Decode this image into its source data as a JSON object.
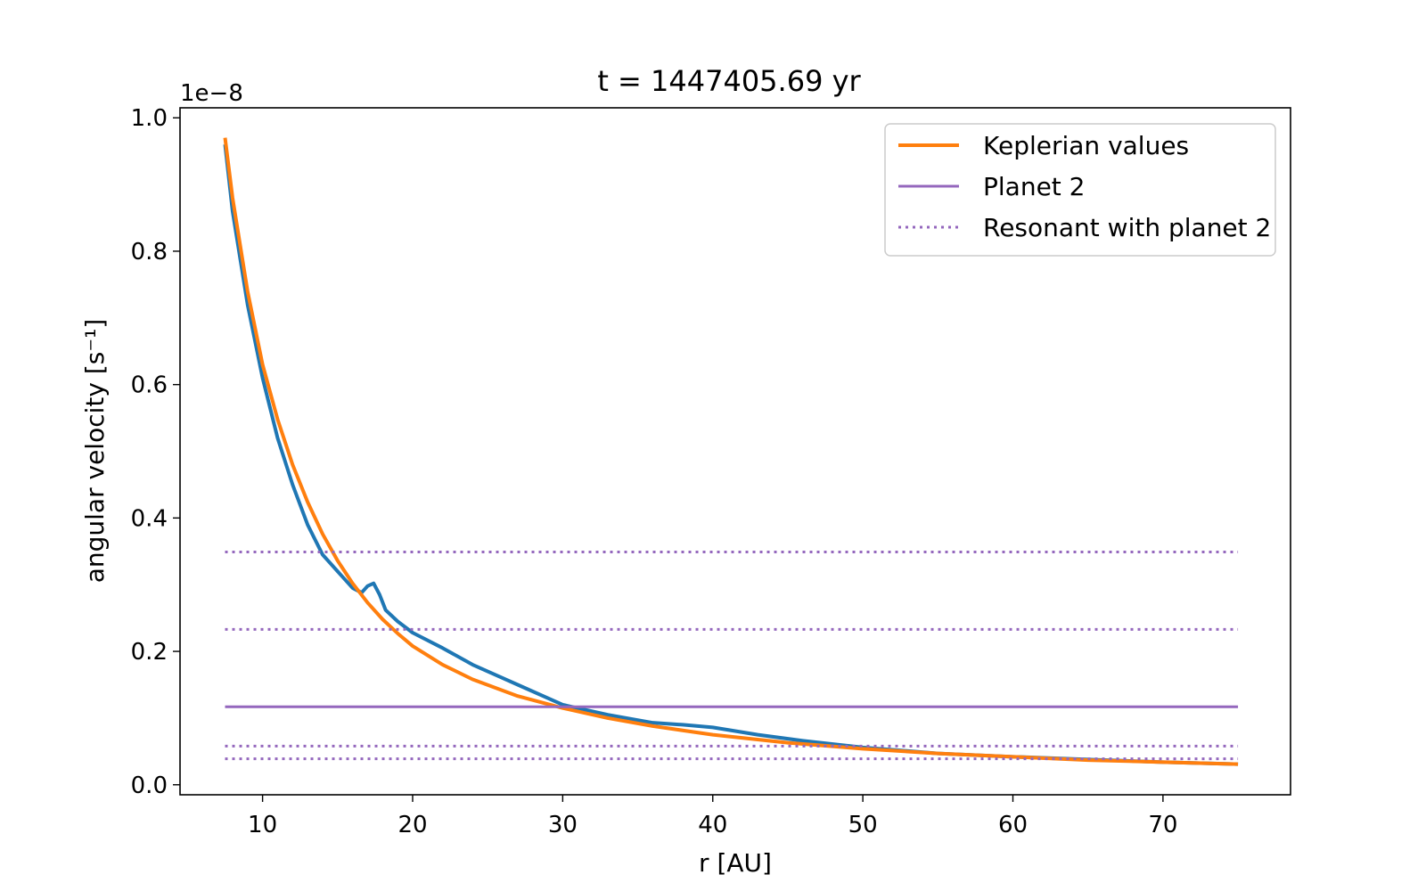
{
  "chart_data": {
    "type": "line",
    "title": "t = 1447405.69 yr",
    "xlabel": "r [AU]",
    "ylabel": "angular velocity [s⁻¹]",
    "y_offset_label": "1e−8",
    "xlim": [
      4.5,
      78.5
    ],
    "ylim": [
      -0.015,
      1.015
    ],
    "x_ticks": [
      10,
      20,
      30,
      40,
      50,
      60,
      70
    ],
    "y_ticks": [
      0.0,
      0.2,
      0.4,
      0.6,
      0.8,
      1.0
    ],
    "y_tick_labels": [
      "0.0",
      "0.2",
      "0.4",
      "0.6",
      "0.8",
      "1.0"
    ],
    "grid": false,
    "legend_position": "upper right",
    "colors": {
      "simulation": "#1f77b4",
      "keplerian": "#ff7f0e",
      "planet": "#9467bd"
    },
    "series": [
      {
        "name": "",
        "style": "solid",
        "color": "#1f77b4",
        "x": [
          7.5,
          8,
          9,
          10,
          11,
          12,
          13,
          14,
          15,
          16,
          16.6,
          17,
          17.4,
          17.8,
          18.2,
          19,
          20,
          22,
          24,
          27,
          30,
          33,
          36,
          38,
          40,
          43,
          46,
          50,
          55,
          60,
          65,
          70,
          75
        ],
        "y": [
          0.96,
          0.86,
          0.72,
          0.61,
          0.52,
          0.45,
          0.39,
          0.345,
          0.32,
          0.295,
          0.288,
          0.298,
          0.302,
          0.285,
          0.262,
          0.245,
          0.228,
          0.205,
          0.18,
          0.15,
          0.12,
          0.105,
          0.093,
          0.09,
          0.086,
          0.075,
          0.066,
          0.056,
          0.047,
          0.042,
          0.038,
          0.034,
          0.031
        ]
      },
      {
        "name": "Keplerian values",
        "style": "solid",
        "color": "#ff7f0e",
        "x": [
          7.5,
          8,
          9,
          10,
          11,
          12,
          13,
          14,
          15,
          16,
          17,
          18,
          19,
          20,
          22,
          24,
          27,
          30,
          33,
          36,
          40,
          45,
          50,
          55,
          60,
          65,
          70,
          75
        ],
        "y": [
          0.97,
          0.88,
          0.74,
          0.63,
          0.548,
          0.48,
          0.424,
          0.376,
          0.336,
          0.302,
          0.273,
          0.248,
          0.227,
          0.208,
          0.18,
          0.158,
          0.133,
          0.115,
          0.1,
          0.088,
          0.075,
          0.063,
          0.054,
          0.047,
          0.042,
          0.037,
          0.034,
          0.031
        ]
      }
    ],
    "hlines": [
      {
        "name": "Planet 2",
        "style": "solid",
        "y": 0.117,
        "xmin": 7.5,
        "xmax": 75
      },
      {
        "name": "Resonant with planet 2",
        "style": "dotted",
        "y": 0.349,
        "xmin": 7.5,
        "xmax": 75
      },
      {
        "name": "Resonant with planet 2",
        "style": "dotted",
        "y": 0.233,
        "xmin": 7.5,
        "xmax": 75
      },
      {
        "name": "Resonant with planet 2",
        "style": "dotted",
        "y": 0.058,
        "xmin": 7.5,
        "xmax": 75
      },
      {
        "name": "Resonant with planet 2",
        "style": "dotted",
        "y": 0.039,
        "xmin": 7.5,
        "xmax": 75
      }
    ],
    "legend": [
      {
        "label": "Keplerian values",
        "color": "#ff7f0e",
        "style": "solid-thick"
      },
      {
        "label": "Planet 2",
        "color": "#9467bd",
        "style": "solid"
      },
      {
        "label": "Resonant with planet 2",
        "color": "#9467bd",
        "style": "dotted"
      }
    ]
  }
}
